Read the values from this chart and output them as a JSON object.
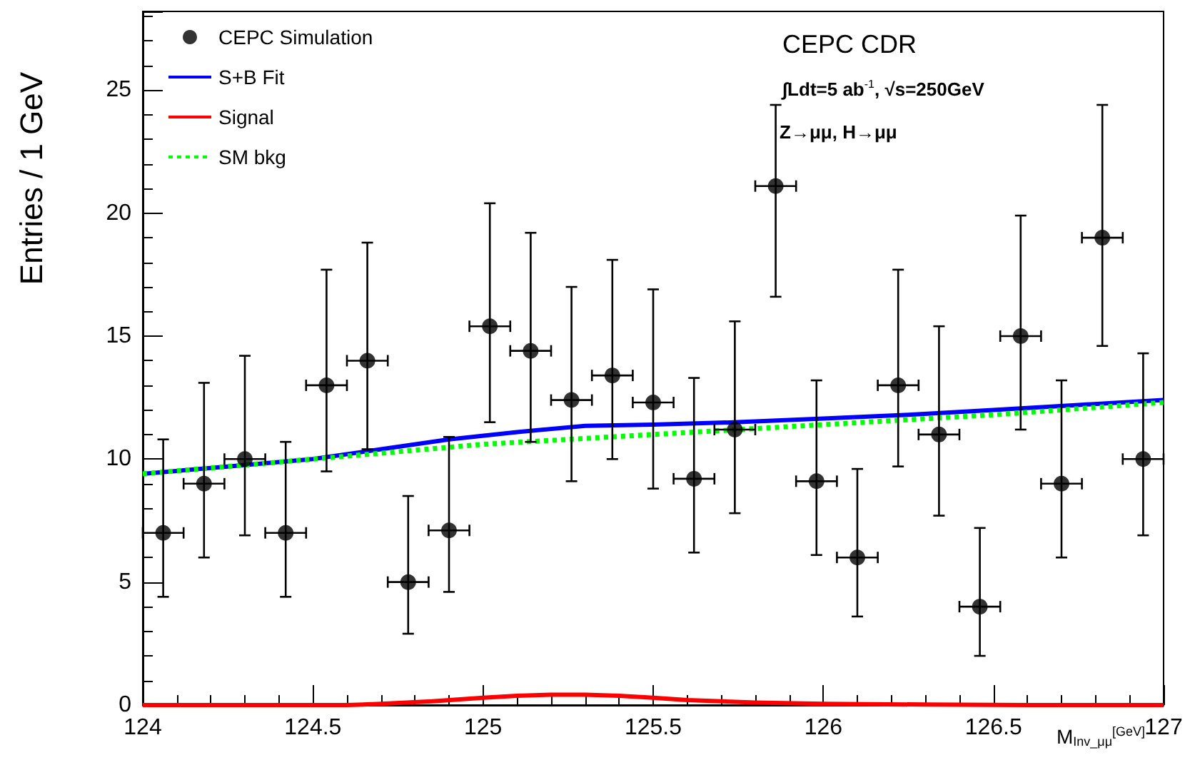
{
  "chart_data": {
    "type": "scatter",
    "xlabel": "M$_{Inv_μμ}$$^{[GeV]}$",
    "ylabel": "Entries / 1 GeV",
    "xlim": [
      124,
      127
    ],
    "xticks": [
      124,
      124.5,
      125,
      125.5,
      126,
      126.5,
      127
    ],
    "ylim": [
      0,
      28.2
    ],
    "yticks": [
      0,
      5,
      10,
      15,
      20,
      25
    ],
    "grid": false,
    "legend": "top left",
    "annotations": [
      "CEPC CDR",
      "∫Ldt=5 ab$^{-1}$, √s=250GeV",
      "Z→μμ, H→μμ"
    ],
    "series": [
      {
        "name": "CEPC Simulation",
        "marker": "circle",
        "color": "#000000",
        "x": [
          124.06,
          124.18,
          124.3,
          124.42,
          124.54,
          124.66,
          124.78,
          124.9,
          125.02,
          125.14,
          125.26,
          125.38,
          125.5,
          125.62,
          125.74,
          125.86,
          125.98,
          126.1,
          126.22,
          126.34,
          126.46,
          126.58,
          126.7,
          126.82,
          126.94
        ],
        "values": [
          7,
          9,
          10,
          7,
          13,
          14,
          5,
          7.1,
          15.4,
          14.4,
          12.4,
          13.4,
          12.3,
          9.2,
          11.2,
          21.1,
          9.1,
          6,
          13,
          11,
          4,
          15,
          9,
          19,
          10
        ],
        "errors": [
          [
            4.4,
            10.8
          ],
          [
            6.0,
            13.1
          ],
          [
            6.9,
            14.2
          ],
          [
            4.4,
            10.7
          ],
          [
            9.5,
            17.7
          ],
          [
            10.4,
            18.8
          ],
          [
            2.9,
            8.5
          ],
          [
            4.6,
            10.9
          ],
          [
            11.5,
            20.4
          ],
          [
            10.7,
            19.2
          ],
          [
            9.1,
            17.0
          ],
          [
            10.0,
            18.1
          ],
          [
            8.8,
            16.9
          ],
          [
            6.2,
            13.3
          ],
          [
            7.8,
            15.6
          ],
          [
            16.6,
            24.4
          ],
          [
            6.1,
            13.2
          ],
          [
            3.6,
            9.6
          ],
          [
            9.7,
            17.7
          ],
          [
            7.7,
            15.4
          ],
          [
            2.0,
            7.2
          ],
          [
            11.2,
            19.9
          ],
          [
            6.0,
            13.2
          ],
          [
            14.6,
            24.4
          ],
          [
            6.9,
            14.3
          ]
        ],
        "xerrors": [
          0.06,
          0.06,
          0.06,
          0.06,
          0.06,
          0.06,
          0.06,
          0.06,
          0.06,
          0.06,
          0.06,
          0.06,
          0.06,
          0.06,
          0.06,
          0.06,
          0.06,
          0.06,
          0.06,
          0.06,
          0.06,
          0.06,
          0.06,
          0.06,
          0.06
        ]
      },
      {
        "name": "S+B Fit",
        "type": "line",
        "line_style": "solid",
        "color": "#0000ff",
        "x": [
          124,
          124.25,
          124.5,
          124.7,
          124.9,
          125.1,
          125.3,
          125.5,
          125.75,
          126,
          126.25,
          126.5,
          126.75,
          127
        ],
        "values": [
          9.4,
          9.7,
          10.0,
          10.4,
          10.8,
          11.1,
          11.35,
          11.4,
          11.5,
          11.65,
          11.8,
          12.0,
          12.2,
          12.4
        ]
      },
      {
        "name": "Signal",
        "type": "line",
        "line_style": "solid",
        "color": "#ff0000",
        "x": [
          124,
          124.6,
          124.7,
          124.85,
          125,
          125.1,
          125.2,
          125.3,
          125.4,
          125.5,
          125.6,
          125.8,
          126,
          126.3,
          126.6,
          127
        ],
        "values": [
          0,
          0,
          0.05,
          0.15,
          0.3,
          0.38,
          0.42,
          0.42,
          0.38,
          0.3,
          0.2,
          0.1,
          0.05,
          0.02,
          0,
          0
        ]
      },
      {
        "name": "SM bkg",
        "type": "line",
        "line_style": "dotted",
        "color": "#00ff00",
        "x": [
          124,
          124.25,
          124.5,
          124.75,
          125,
          125.25,
          125.5,
          125.75,
          126,
          126.25,
          126.5,
          126.75,
          127
        ],
        "values": [
          9.4,
          9.7,
          10.0,
          10.3,
          10.6,
          10.8,
          11.0,
          11.2,
          11.4,
          11.6,
          11.8,
          12.05,
          12.3
        ]
      }
    ]
  }
}
